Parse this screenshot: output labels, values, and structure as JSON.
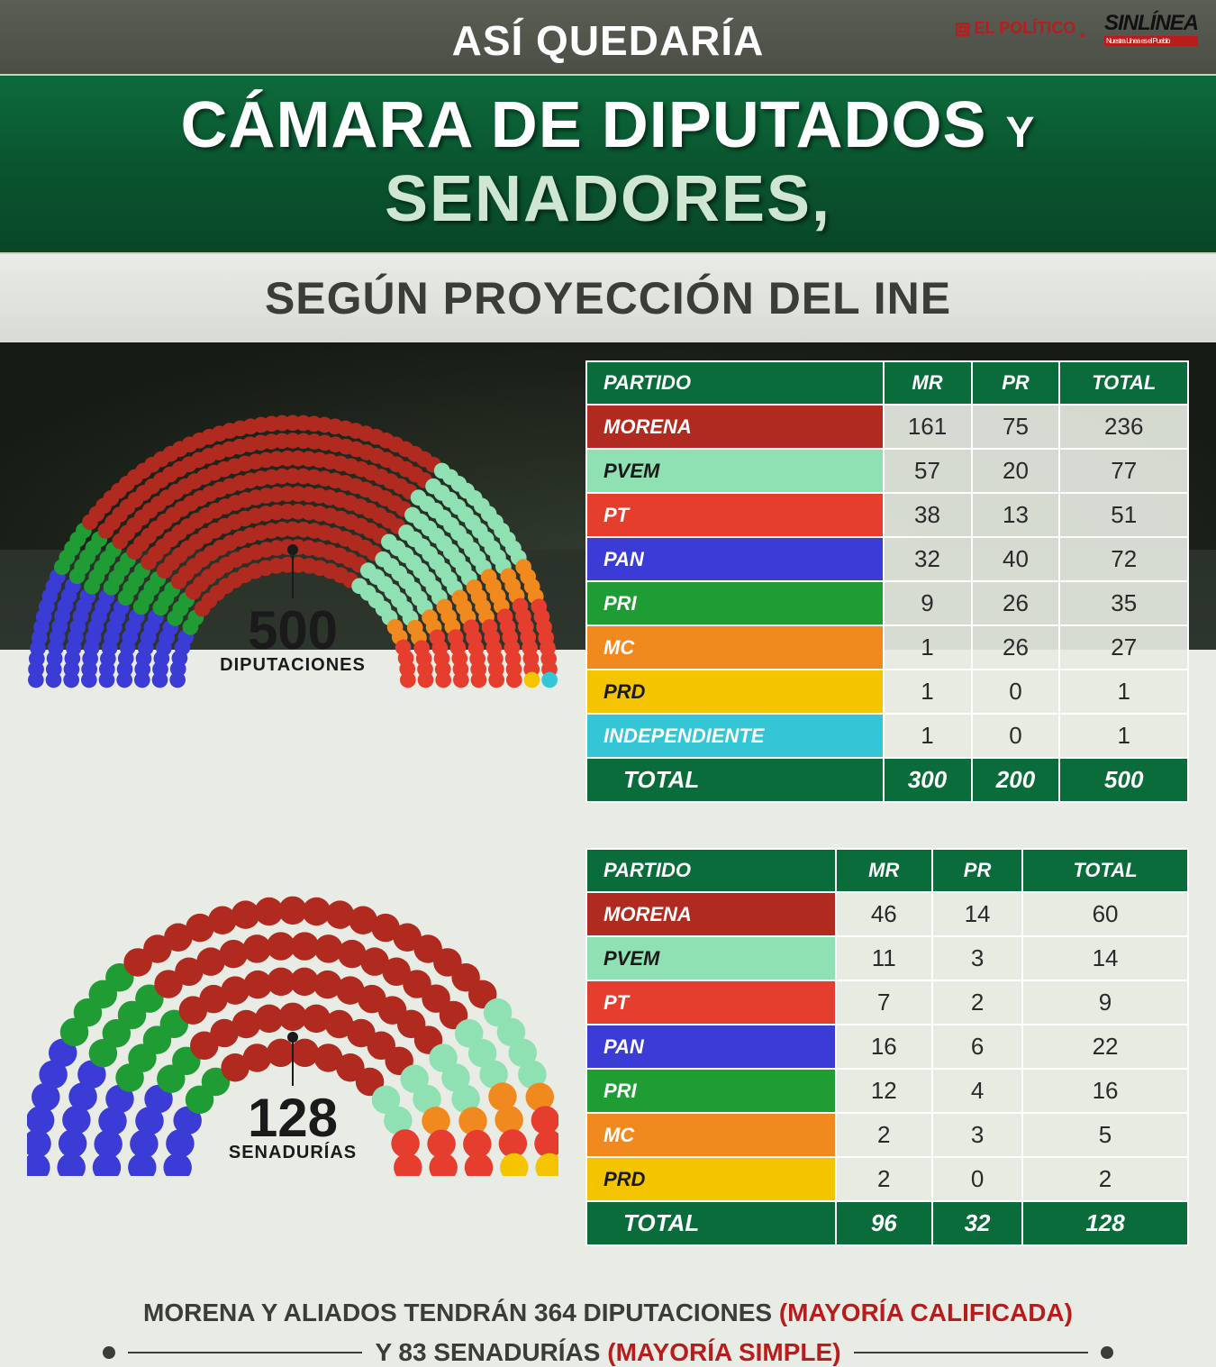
{
  "logos": {
    "politico": "EL POLÍTICO",
    "sinlinea": "SINLÍNEA",
    "sinlinea_tag": "Nuestra Línea es el Pueblo"
  },
  "pretitle": "ASÍ QUEDARÍA",
  "title_line1_a": "CÁMARA DE DIPUTADOS",
  "title_line1_y": "Y",
  "title_line2": "SENADORES,",
  "subtitle": "SEGÚN PROYECCIÓN DEL INE",
  "columns": [
    "PARTIDO",
    "MR",
    "PR",
    "TOTAL"
  ],
  "total_label": "TOTAL",
  "party_colors": {
    "MORENA": "#b02a1f",
    "PVEM": "#8fe0b3",
    "PT": "#e53e2e",
    "PAN": "#3b3bd6",
    "PRI": "#1f9c34",
    "MC": "#f08a1e",
    "PRD": "#f5c400",
    "INDEPENDIENTE": "#34c5d6"
  },
  "diputados": {
    "hemi_total": "500",
    "hemi_word": "DIPUTACIONES",
    "hemi_dot_radius": 9,
    "rows": [
      {
        "party": "MORENA",
        "mr": 161,
        "pr": 75,
        "total": 236
      },
      {
        "party": "PVEM",
        "mr": 57,
        "pr": 20,
        "total": 77
      },
      {
        "party": "PT",
        "mr": 38,
        "pr": 13,
        "total": 51
      },
      {
        "party": "PAN",
        "mr": 32,
        "pr": 40,
        "total": 72
      },
      {
        "party": "PRI",
        "mr": 9,
        "pr": 26,
        "total": 35
      },
      {
        "party": "MC",
        "mr": 1,
        "pr": 26,
        "total": 27
      },
      {
        "party": "PRD",
        "mr": 1,
        "pr": 0,
        "total": 1
      },
      {
        "party": "INDEPENDIENTE",
        "mr": 1,
        "pr": 0,
        "total": 1
      }
    ],
    "totals": {
      "mr": 300,
      "pr": 200,
      "total": 500
    },
    "hemi_order": [
      "PAN",
      "PRI",
      "MORENA",
      "PVEM",
      "MC",
      "PT",
      "PRD",
      "INDEPENDIENTE"
    ]
  },
  "senadores": {
    "hemi_total": "128",
    "hemi_word": "SENADURÍAS",
    "hemi_dot_radius": 16,
    "rows": [
      {
        "party": "MORENA",
        "mr": 46,
        "pr": 14,
        "total": 60
      },
      {
        "party": "PVEM",
        "mr": 11,
        "pr": 3,
        "total": 14
      },
      {
        "party": "PT",
        "mr": 7,
        "pr": 2,
        "total": 9
      },
      {
        "party": "PAN",
        "mr": 16,
        "pr": 6,
        "total": 22
      },
      {
        "party": "PRI",
        "mr": 12,
        "pr": 4,
        "total": 16
      },
      {
        "party": "MC",
        "mr": 2,
        "pr": 3,
        "total": 5
      },
      {
        "party": "PRD",
        "mr": 2,
        "pr": 0,
        "total": 2
      }
    ],
    "totals": {
      "mr": 96,
      "pr": 32,
      "total": 128
    },
    "hemi_order": [
      "PAN",
      "PRI",
      "MORENA",
      "PVEM",
      "MC",
      "PT",
      "PRD"
    ]
  },
  "footer": {
    "line1_a": "MORENA Y ALIADOS TENDRÁN 364 DIPUTACIONES ",
    "line1_b": "(MAYORÍA CALIFICADA)",
    "line2_a": "Y 83 SENADURÍAS ",
    "line2_b": "(MAYORÍA SIMPLE)"
  }
}
